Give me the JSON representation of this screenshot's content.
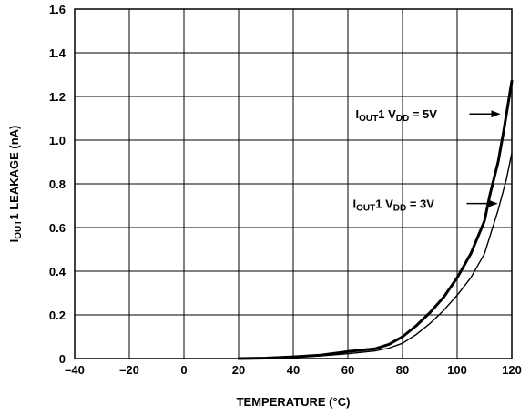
{
  "chart_data": {
    "type": "line",
    "xlabel": "TEMPERATURE (°C)",
    "ylabel": {
      "prefix": "I",
      "sub": "OUT",
      "suffix": "1 LEAKAGE (nA)"
    },
    "xlim": [
      -40,
      120
    ],
    "ylim": [
      0,
      1.6
    ],
    "xticks": [
      -40,
      -20,
      0,
      20,
      40,
      60,
      80,
      100,
      120
    ],
    "yticks": [
      0,
      0.2,
      0.4,
      0.6,
      0.8,
      1.0,
      1.2,
      1.4,
      1.6
    ],
    "xtick_labels": [
      "–40",
      "–20",
      "0",
      "20",
      "40",
      "60",
      "80",
      "100",
      "120"
    ],
    "ytick_labels": [
      "0",
      "0.2",
      "0.4",
      "0.6",
      "0.8",
      "1.0",
      "1.2",
      "1.4",
      "1.6"
    ],
    "grid": true,
    "series": [
      {
        "key": "vdd5",
        "x": [
          20,
          30,
          40,
          50,
          60,
          70,
          75,
          80,
          85,
          90,
          95,
          100,
          105,
          110,
          112,
          115,
          117,
          120
        ],
        "y": [
          0.0,
          0.002,
          0.008,
          0.016,
          0.032,
          0.045,
          0.065,
          0.1,
          0.15,
          0.21,
          0.28,
          0.37,
          0.48,
          0.63,
          0.75,
          0.9,
          1.04,
          1.27
        ],
        "line_width": "thick"
      },
      {
        "key": "vdd3",
        "x": [
          20,
          30,
          40,
          50,
          60,
          70,
          75,
          80,
          85,
          90,
          95,
          100,
          105,
          110,
          112,
          115,
          118,
          120
        ],
        "y": [
          0.0,
          0.001,
          0.005,
          0.012,
          0.022,
          0.035,
          0.048,
          0.07,
          0.11,
          0.16,
          0.22,
          0.29,
          0.37,
          0.48,
          0.56,
          0.68,
          0.82,
          0.94
        ],
        "line_width": "thin"
      }
    ],
    "annotations": [
      {
        "key": "vdd5",
        "i": "I",
        "i_sub": "OUT",
        "mid": "1 V",
        "v_sub": "DD",
        "tail": " = 5V",
        "arrow_to": [
          115.5,
          1.12
        ]
      },
      {
        "key": "vdd3",
        "i": "I",
        "i_sub": "OUT",
        "mid": "1 V",
        "v_sub": "DD",
        "tail": " = 3V",
        "arrow_to": [
          114.5,
          0.71
        ]
      }
    ]
  }
}
